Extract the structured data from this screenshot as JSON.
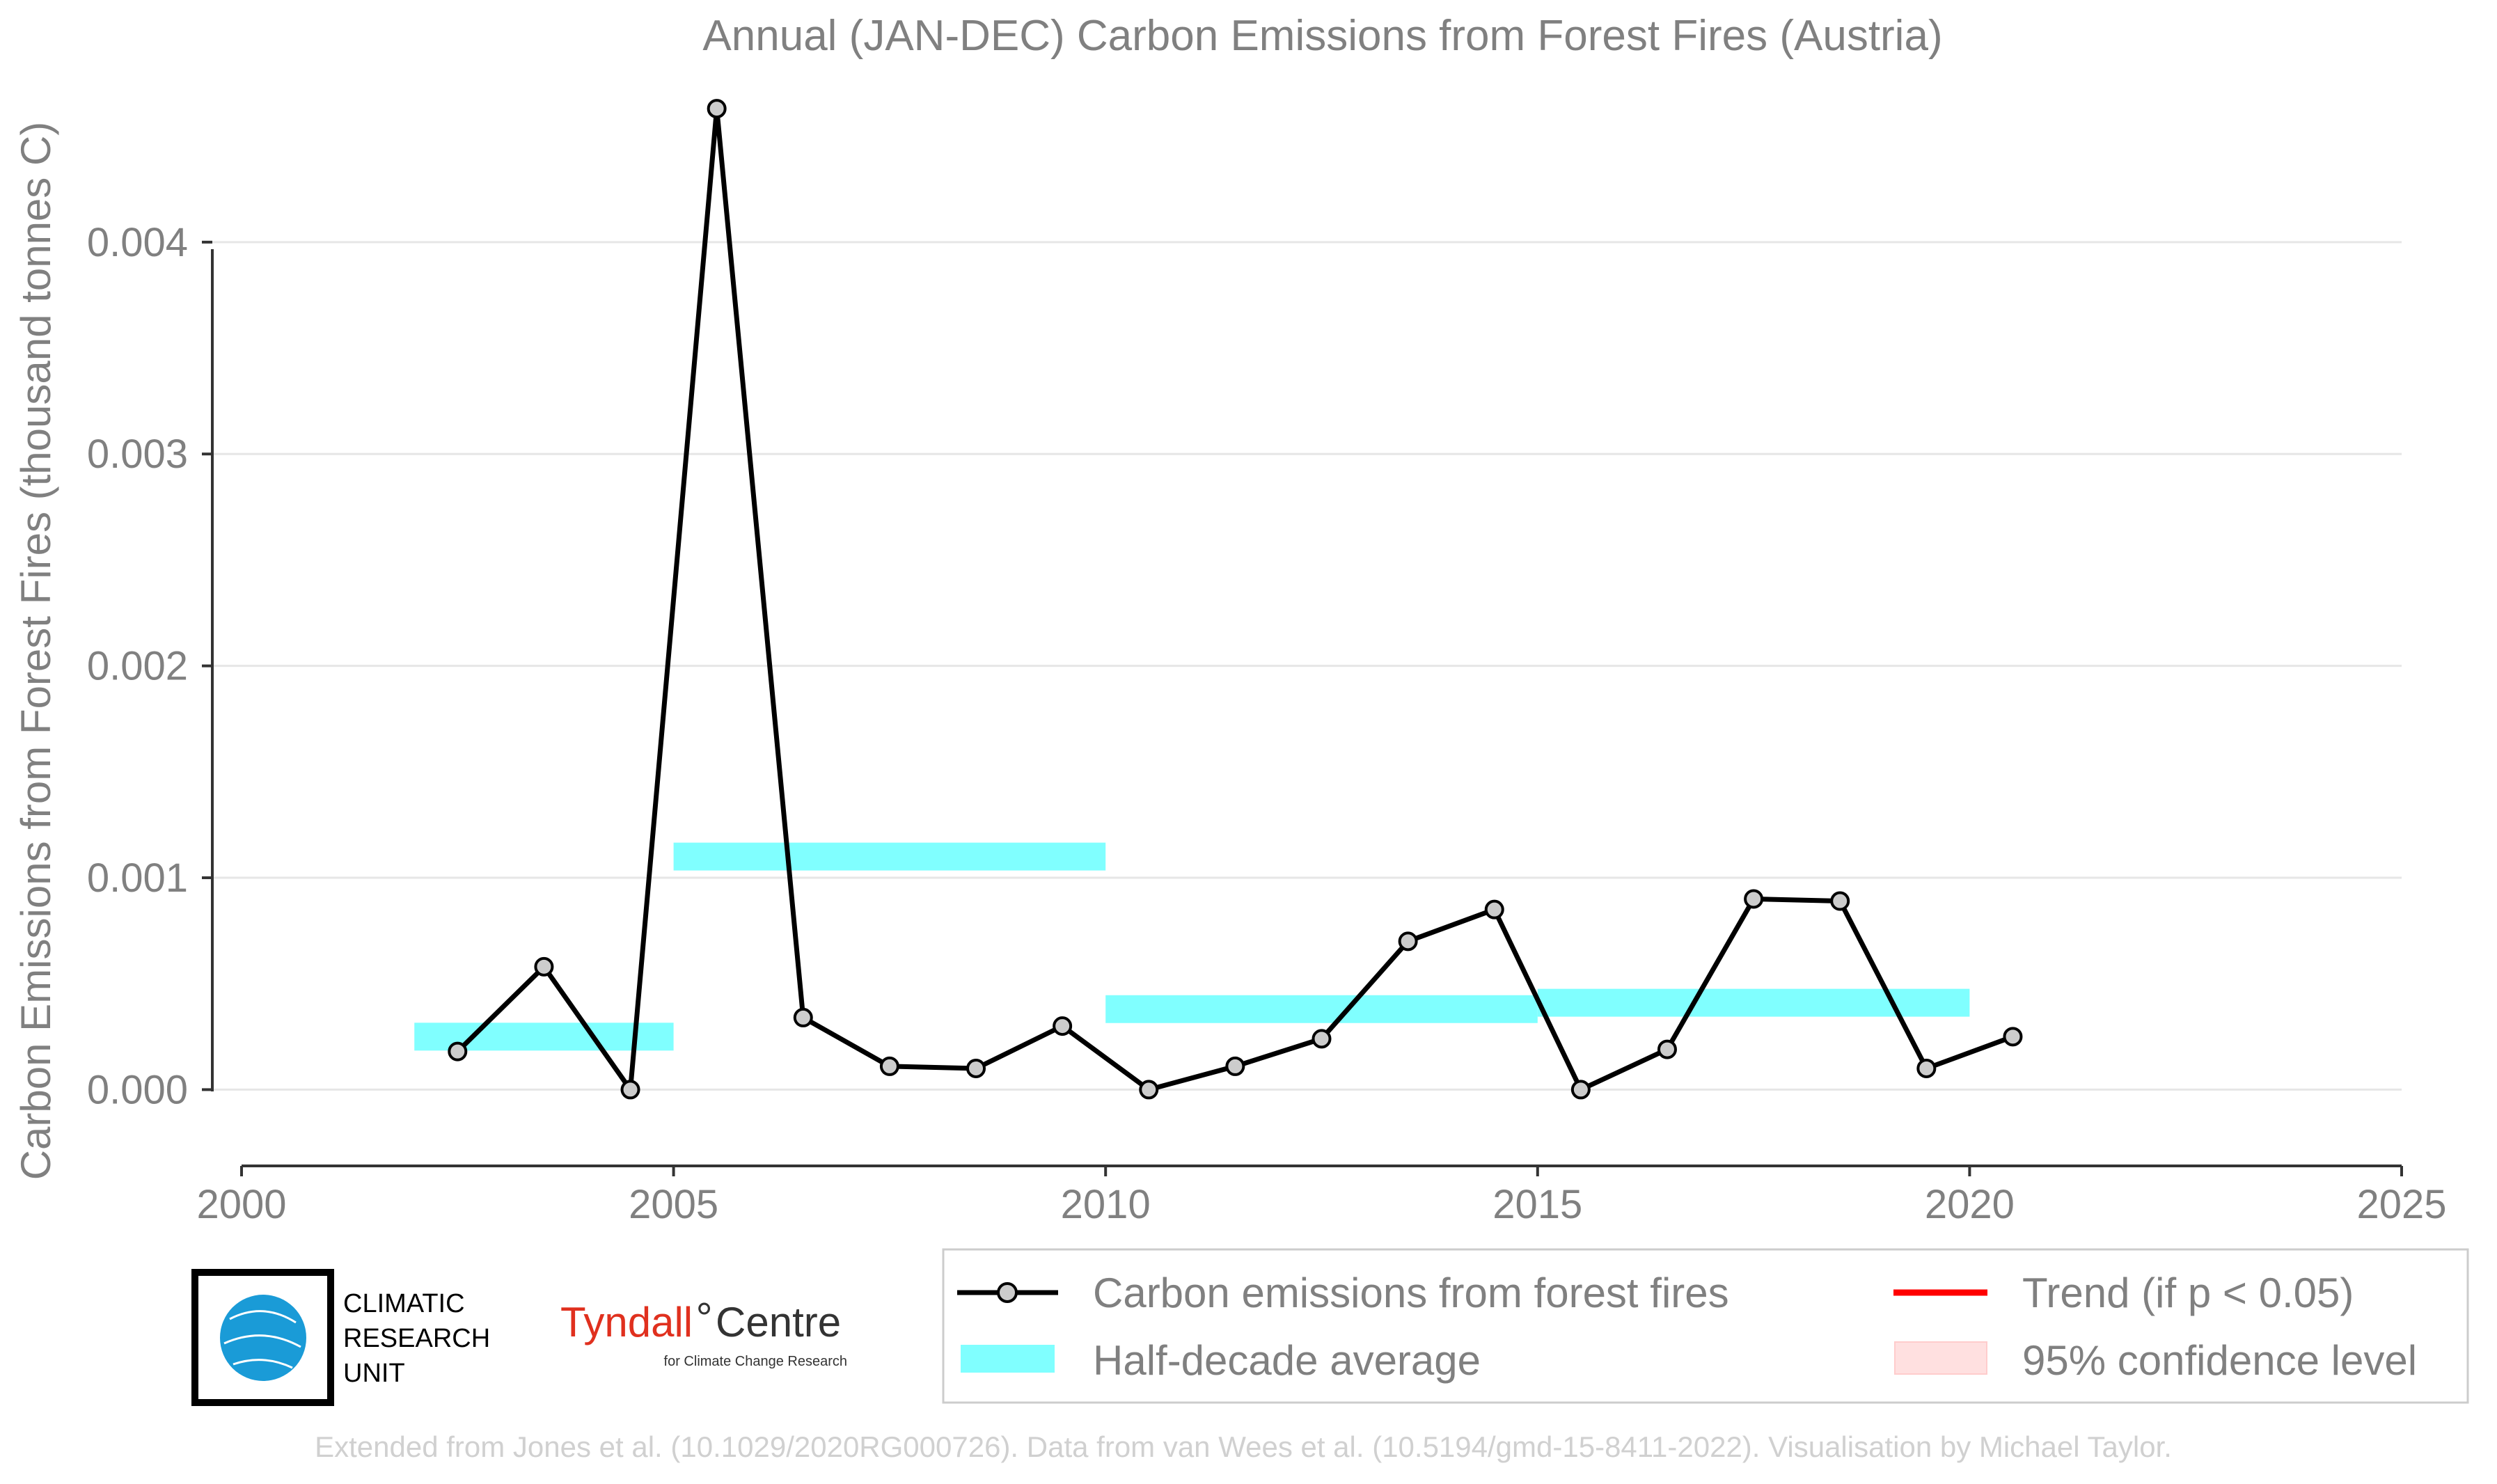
{
  "chart_data": {
    "type": "line",
    "title": "Annual (JAN-DEC) Carbon Emissions from Forest Fires (Austria)",
    "xlabel": "",
    "ylabel": "Carbon Emissions from Forest Fires (thousand tonnes C)",
    "xlim": [
      2000,
      2025
    ],
    "ylim": [
      -0.00036,
      0.00465
    ],
    "x_ticks": [
      "2000",
      "2005",
      "2010",
      "2015",
      "2020",
      "2025"
    ],
    "y_ticks": [
      "0.000",
      "0.001",
      "0.002",
      "0.003",
      "0.004"
    ],
    "grid": "horizontal",
    "series": [
      {
        "name": "Carbon emissions from forest fires",
        "color": "#000000",
        "marker_fill": "#cccccc",
        "x": [
          2002.5,
          2003.5,
          2004.5,
          2005.5,
          2006.5,
          2007.5,
          2008.5,
          2009.5,
          2010.5,
          2011.5,
          2012.5,
          2013.5,
          2014.5,
          2015.5,
          2016.5,
          2017.5,
          2018.5,
          2019.5,
          2020.5
        ],
        "values": [
          0.00018,
          0.00058,
          0.0,
          0.00463,
          0.00034,
          0.00011,
          0.0001,
          0.0003,
          0.0,
          0.00011,
          0.00024,
          0.0007,
          0.00085,
          0.0,
          0.00019,
          0.0009,
          0.00089,
          0.0001,
          0.00025
        ]
      }
    ],
    "half_decade_average": {
      "name": "Half-decade average",
      "color": "#80ffff",
      "segments": [
        {
          "start": 2002,
          "end": 2005,
          "value": 0.00025
        },
        {
          "start": 2005,
          "end": 2010,
          "value": 0.0011
        },
        {
          "start": 2010,
          "end": 2015,
          "value": 0.00038
        },
        {
          "start": 2015,
          "end": 2020,
          "value": 0.00041
        }
      ]
    },
    "legend": {
      "placement": "bottom-right",
      "items": [
        {
          "label": "Carbon emissions from forest fires",
          "kind": "line-marker",
          "color": "#000000"
        },
        {
          "label": "Trend (if p < 0.05)",
          "kind": "line",
          "color": "#ff0000"
        },
        {
          "label": "Half-decade average",
          "kind": "band",
          "color": "#80ffff"
        },
        {
          "label": "95% confidence level",
          "kind": "box",
          "color": "#ffe0e0"
        }
      ]
    }
  },
  "logos": {
    "cru": [
      "CLIMATIC",
      "RESEARCH",
      "UNIT"
    ],
    "cru_icon": "globe-icon",
    "tyndall_name": "Tyndall",
    "tyndall_centre": "Centre",
    "tyndall_tagline": "for Climate Change Research"
  },
  "credit": "Extended from Jones et al. (10.1029/2020RG000726). Data from van Wees et al. (10.5194/gmd-15-8411-2022). Visualisation by Michael Taylor."
}
